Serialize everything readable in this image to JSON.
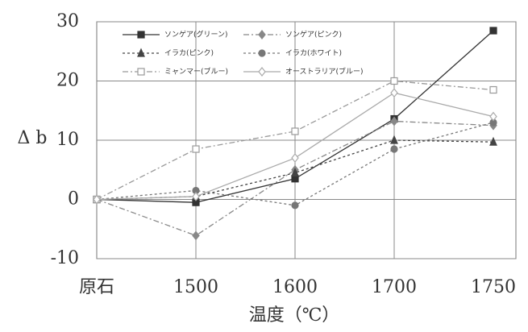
{
  "chart_data": {
    "type": "line",
    "ylabel": "Δ b",
    "xlabel": "温度（℃）",
    "categories": [
      "原石",
      "1500",
      "1600",
      "1700",
      "1750"
    ],
    "ylim": [
      -10,
      30
    ],
    "yticks": [
      -10,
      0,
      10,
      20,
      30
    ],
    "grid": true,
    "legend": "top-left",
    "series": [
      {
        "name": "ソンゲア(グリーン)",
        "color": "#333333",
        "marker": "square-filled",
        "dash": "solid",
        "values": [
          0,
          -0.5,
          3.5,
          13.6,
          28.5
        ]
      },
      {
        "name": "ソンゲア(ピンク)",
        "color": "#888888",
        "marker": "diamond-filled",
        "dash": "dashdot",
        "values": [
          0,
          -6.1,
          5,
          13.2,
          12.5
        ]
      },
      {
        "name": "イラカ(ピンク)",
        "color": "#444444",
        "marker": "triangle-filled",
        "dash": "dotted",
        "values": [
          0,
          0.5,
          4.5,
          10,
          9.7
        ]
      },
      {
        "name": "イラカ(ホワイト)",
        "color": "#777777",
        "marker": "circle-filled",
        "dash": "dotted",
        "values": [
          0,
          1.5,
          -1,
          8.5,
          13
        ]
      },
      {
        "name": "ミャンマー(ブルー)",
        "color": "#999999",
        "marker": "square-open",
        "dash": "dashdot",
        "values": [
          0,
          8.5,
          11.5,
          20,
          18.5
        ]
      },
      {
        "name": "オーストラリア(ブルー)",
        "color": "#aaaaaa",
        "marker": "diamond-open",
        "dash": "solid",
        "values": [
          0,
          0.5,
          7,
          18,
          14
        ]
      }
    ]
  }
}
